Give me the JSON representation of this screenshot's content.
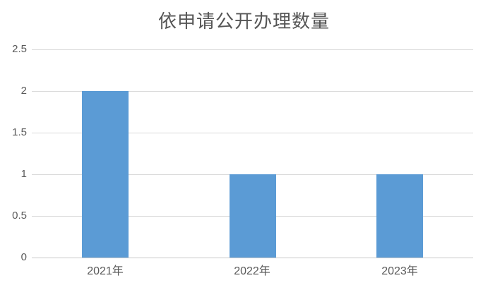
{
  "chart_data": {
    "type": "bar",
    "title": "依申请公开办理数量",
    "categories": [
      "2021年",
      "2022年",
      "2023年"
    ],
    "values": [
      2,
      1,
      1
    ],
    "xlabel": "",
    "ylabel": "",
    "ylim": [
      0,
      2.5
    ],
    "y_ticks": [
      0,
      0.5,
      1,
      1.5,
      2,
      2.5
    ],
    "grid": "horizontal",
    "legend_position": "none",
    "colors": {
      "bar": "#5B9BD5",
      "gridline": "#D9D9D9",
      "axis_line": "#C9C9C9",
      "tick_label": "#595959",
      "title": "#555555",
      "background": "#FFFFFF"
    }
  }
}
